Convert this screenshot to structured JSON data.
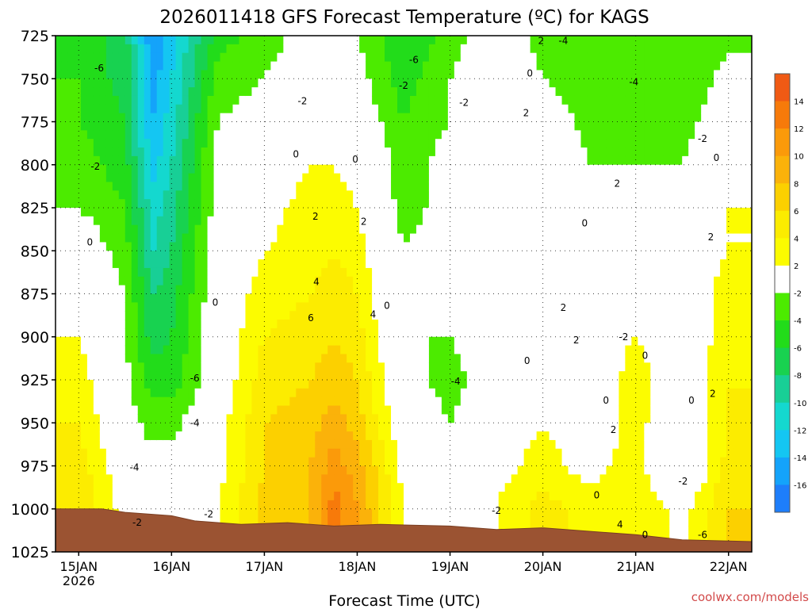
{
  "title": "2026011418 GFS Forecast Temperature (ºC) for KAGS",
  "credit": "coolwx.com/models",
  "credit_color": "#d24a4a",
  "chart_data": {
    "type": "heatmap",
    "title": "2026011418 GFS Forecast Temperature (ºC) for KAGS",
    "xlabel": "Forecast Time (UTC)",
    "ylabel": "",
    "x_ticks": [
      {
        "label": "15JAN",
        "sub": "2026",
        "day": 15
      },
      {
        "label": "16JAN",
        "sub": "",
        "day": 16
      },
      {
        "label": "17JAN",
        "sub": "",
        "day": 17
      },
      {
        "label": "18JAN",
        "sub": "",
        "day": 18
      },
      {
        "label": "19JAN",
        "sub": "",
        "day": 19
      },
      {
        "label": "20JAN",
        "sub": "",
        "day": 20
      },
      {
        "label": "21JAN",
        "sub": "",
        "day": 21
      },
      {
        "label": "22JAN",
        "sub": "",
        "day": 22
      }
    ],
    "xlim": [
      14.75,
      22.25
    ],
    "y_ticks": [
      725,
      750,
      775,
      800,
      825,
      850,
      875,
      900,
      925,
      950,
      975,
      1000,
      1025
    ],
    "ylim": [
      725,
      1025
    ],
    "y_inverted": true,
    "grid": true,
    "colorbar": {
      "ticks": [
        14,
        12,
        10,
        8,
        6,
        4,
        2,
        -2,
        -4,
        -6,
        -8,
        -10,
        -12,
        -14,
        -16
      ],
      "colors": [
        "#f05a14",
        "#f77a0a",
        "#fb9a0a",
        "#fbb20a",
        "#fcd000",
        "#fcec00",
        "#fcfc00",
        "#ffffff",
        "#4ceb00",
        "#22dc1a",
        "#18d250",
        "#18cf96",
        "#14d8cf",
        "#14c6f2",
        "#14a3fa",
        "#1e7efa"
      ]
    },
    "temperature_profiles": [
      {
        "day": 15.0,
        "temps": [
          -5,
          -4,
          -4,
          -3,
          -2,
          0,
          1,
          2,
          3,
          4,
          5,
          6
        ]
      },
      {
        "day": 15.5,
        "temps": [
          -7,
          -7,
          -6,
          -5,
          -4,
          -3,
          -2,
          -2,
          -1,
          -1,
          0,
          1
        ]
      },
      {
        "day": 15.8,
        "temps": [
          -16,
          -15,
          -14,
          -13,
          -11,
          -10,
          -8,
          -7,
          -5,
          -3,
          -1,
          2
        ]
      },
      {
        "day": 16.0,
        "temps": [
          -13,
          -12,
          -11,
          -10,
          -9,
          -8,
          -7,
          -6,
          -5,
          -3,
          -1,
          1
        ]
      },
      {
        "day": 16.5,
        "temps": [
          -5,
          -3,
          -2,
          -1,
          -1,
          0,
          0,
          0,
          0,
          1,
          1,
          2
        ]
      },
      {
        "day": 17.0,
        "temps": [
          -3,
          -2,
          -1,
          0,
          1,
          2,
          3,
          4,
          5,
          6,
          6,
          7
        ]
      },
      {
        "day": 17.5,
        "temps": [
          -1,
          0,
          1,
          2,
          3,
          3,
          4,
          5,
          6,
          7,
          8,
          8
        ]
      },
      {
        "day": 17.75,
        "temps": [
          -2,
          0,
          1,
          2,
          3,
          4,
          5,
          6,
          7,
          9,
          11,
          13
        ]
      },
      {
        "day": 18.0,
        "temps": [
          -2,
          -1,
          0,
          1,
          2,
          3,
          4,
          5,
          6,
          7,
          9,
          10
        ]
      },
      {
        "day": 18.5,
        "temps": [
          -6,
          -5,
          -4,
          -3,
          -3,
          -2,
          -2,
          -2,
          -1,
          0,
          1,
          2
        ]
      },
      {
        "day": 19.0,
        "temps": [
          -3,
          -2,
          -2,
          -1,
          -1,
          0,
          0,
          -2,
          -3,
          -2,
          -1,
          1
        ]
      },
      {
        "day": 19.5,
        "temps": [
          0,
          1,
          1,
          1,
          0,
          0,
          0,
          0,
          0,
          0,
          1,
          2
        ]
      },
      {
        "day": 20.0,
        "temps": [
          -3,
          -2,
          0,
          2,
          2,
          2,
          1,
          0,
          0,
          2,
          3,
          5
        ]
      },
      {
        "day": 20.5,
        "temps": [
          -4,
          -4,
          -3,
          -2,
          -2,
          -1,
          0,
          1,
          0,
          0,
          1,
          3
        ]
      },
      {
        "day": 21.0,
        "temps": [
          -4,
          -4,
          -3,
          -2,
          -1,
          0,
          1,
          2,
          3,
          3,
          3,
          4
        ]
      },
      {
        "day": 21.5,
        "temps": [
          -4,
          -4,
          -3,
          -2,
          -1,
          0,
          0,
          0,
          0,
          -1,
          -2,
          1
        ]
      },
      {
        "day": 22.0,
        "temps": [
          -3,
          -1,
          0,
          1,
          2,
          2,
          3,
          3,
          4,
          4,
          5,
          6
        ]
      }
    ],
    "contour_labels": [
      {
        "t": "-6",
        "day": 15.22,
        "p": 744
      },
      {
        "t": "-2",
        "day": 15.18,
        "p": 801
      },
      {
        "t": "0",
        "day": 15.12,
        "p": 845
      },
      {
        "t": "-4",
        "day": 15.6,
        "p": 976
      },
      {
        "t": "-2",
        "day": 15.63,
        "p": 1008
      },
      {
        "t": "-6",
        "day": 16.25,
        "p": 924
      },
      {
        "t": "-4",
        "day": 16.25,
        "p": 950
      },
      {
        "t": "-2",
        "day": 16.4,
        "p": 1003
      },
      {
        "t": "0",
        "day": 16.47,
        "p": 880
      },
      {
        "t": "-2",
        "day": 17.41,
        "p": 763
      },
      {
        "t": "0",
        "day": 17.34,
        "p": 794
      },
      {
        "t": "0",
        "day": 17.98,
        "p": 797
      },
      {
        "t": "-2",
        "day": 18.5,
        "p": 754
      },
      {
        "t": "-6",
        "day": 18.61,
        "p": 739
      },
      {
        "t": "-2",
        "day": 19.15,
        "p": 764
      },
      {
        "t": "2",
        "day": 17.55,
        "p": 830
      },
      {
        "t": "2",
        "day": 18.07,
        "p": 833
      },
      {
        "t": "4",
        "day": 17.56,
        "p": 868
      },
      {
        "t": "6",
        "day": 17.5,
        "p": 889
      },
      {
        "t": "4",
        "day": 18.17,
        "p": 887
      },
      {
        "t": "0",
        "day": 18.32,
        "p": 882
      },
      {
        "t": "-4",
        "day": 19.06,
        "p": 926
      },
      {
        "t": "-2",
        "day": 19.5,
        "p": 1001
      },
      {
        "t": "2",
        "day": 19.98,
        "p": 728
      },
      {
        "t": "-4",
        "day": 20.22,
        "p": 728
      },
      {
        "t": "0",
        "day": 19.86,
        "p": 747
      },
      {
        "t": "2",
        "day": 19.82,
        "p": 770
      },
      {
        "t": "-4",
        "day": 20.98,
        "p": 752
      },
      {
        "t": "-2",
        "day": 21.72,
        "p": 785
      },
      {
        "t": "0",
        "day": 21.87,
        "p": 796
      },
      {
        "t": "2",
        "day": 20.8,
        "p": 811
      },
      {
        "t": "0",
        "day": 20.45,
        "p": 834
      },
      {
        "t": "2",
        "day": 21.81,
        "p": 842
      },
      {
        "t": "2",
        "day": 20.22,
        "p": 883
      },
      {
        "t": "2",
        "day": 20.36,
        "p": 902
      },
      {
        "t": "-2",
        "day": 20.87,
        "p": 900
      },
      {
        "t": "0",
        "day": 21.1,
        "p": 911
      },
      {
        "t": "0",
        "day": 19.83,
        "p": 914
      },
      {
        "t": "0",
        "day": 20.68,
        "p": 937
      },
      {
        "t": "2",
        "day": 20.76,
        "p": 954
      },
      {
        "t": "0",
        "day": 21.6,
        "p": 937
      },
      {
        "t": "2",
        "day": 21.83,
        "p": 933
      },
      {
        "t": "-2",
        "day": 21.51,
        "p": 984
      },
      {
        "t": "0",
        "day": 20.58,
        "p": 992
      },
      {
        "t": "4",
        "day": 20.83,
        "p": 1009
      },
      {
        "t": "0",
        "day": 21.1,
        "p": 1015
      },
      {
        "t": "-6",
        "day": 21.72,
        "p": 1015
      }
    ],
    "surface_pressure": [
      {
        "day": 14.75,
        "p": 1000
      },
      {
        "day": 15.25,
        "p": 1000
      },
      {
        "day": 15.5,
        "p": 1002
      },
      {
        "day": 16.0,
        "p": 1004
      },
      {
        "day": 16.25,
        "p": 1007
      },
      {
        "day": 16.75,
        "p": 1009
      },
      {
        "day": 17.25,
        "p": 1008
      },
      {
        "day": 17.75,
        "p": 1010
      },
      {
        "day": 18.25,
        "p": 1009
      },
      {
        "day": 19.0,
        "p": 1010
      },
      {
        "day": 19.5,
        "p": 1012
      },
      {
        "day": 20.0,
        "p": 1011
      },
      {
        "day": 20.5,
        "p": 1013
      },
      {
        "day": 21.0,
        "p": 1015
      },
      {
        "day": 21.5,
        "p": 1018
      },
      {
        "day": 22.25,
        "p": 1019
      }
    ]
  }
}
